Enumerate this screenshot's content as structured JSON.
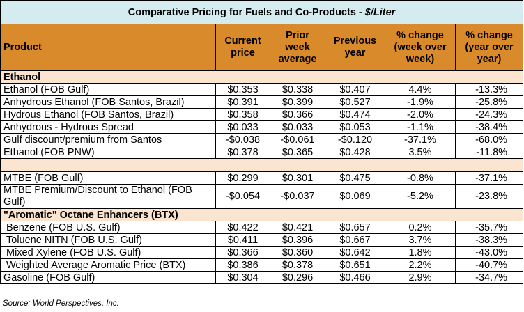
{
  "title": {
    "main": "Comparative Pricing for Fuels and Co-Products - ",
    "unit": "$/Liter"
  },
  "columns": {
    "product": "Product",
    "current": "Current price",
    "prior_week": "Prior week average",
    "previous_year": "Previous year",
    "pct_week": "% change (week over week)",
    "pct_year": "% change (year over year)"
  },
  "sections": {
    "ethanol": "Ethanol",
    "aromatic": "\"Aromatic\" Octane Enhancers (BTX)"
  },
  "rows": [
    {
      "name": "Ethanol (FOB Gulf)",
      "current": "$0.353",
      "prior": "$0.338",
      "prev_year": "$0.407",
      "pct_week": "4.4%",
      "pct_year": "-13.3%"
    },
    {
      "name": "Anhydrous Ethanol (FOB Santos, Brazil)",
      "current": "$0.391",
      "prior": "$0.399",
      "prev_year": "$0.527",
      "pct_week": "-1.9%",
      "pct_year": "-25.8%"
    },
    {
      "name": "Hydrous Ethanol (FOB Santos, Brazil)",
      "current": "$0.358",
      "prior": "$0.366",
      "prev_year": "$0.474",
      "pct_week": "-2.0%",
      "pct_year": "-24.3%"
    },
    {
      "name": "Anhydrous - Hydrous Spread",
      "current": "$0.033",
      "prior": "$0.033",
      "prev_year": "$0.053",
      "pct_week": "-1.1%",
      "pct_year": "-38.4%"
    },
    {
      "name": "Gulf discount/premium from Santos",
      "current": "-$0.038",
      "prior": "-$0.061",
      "prev_year": "-$0.120",
      "pct_week": "-37.1%",
      "pct_year": "-68.0%"
    },
    {
      "name": "Ethanol (FOB PNW)",
      "current": "$0.378",
      "prior": "$0.365",
      "prev_year": "$0.428",
      "pct_week": "3.5%",
      "pct_year": "-11.8%"
    },
    {
      "name": "MTBE (FOB Gulf)",
      "current": "$0.299",
      "prior": "$0.301",
      "prev_year": "$0.475",
      "pct_week": "-0.8%",
      "pct_year": "-37.1%"
    },
    {
      "name": "MTBE Premium/Discount to Ethanol (FOB Gulf)",
      "current": "-$0.054",
      "prior": "-$0.037",
      "prev_year": "$0.069",
      "pct_week": "-5.2%",
      "pct_year": "-23.8%"
    },
    {
      "name": "Benzene (FOB U.S. Gulf)",
      "current": "$0.422",
      "prior": "$0.421",
      "prev_year": "$0.657",
      "pct_week": "0.2%",
      "pct_year": "-35.7%"
    },
    {
      "name": "Toluene NITN (FOB U.S. Gulf)",
      "current": "$0.411",
      "prior": "$0.396",
      "prev_year": "$0.667",
      "pct_week": "3.7%",
      "pct_year": "-38.3%"
    },
    {
      "name": "Mixed Xylene (FOB U.S. Gulf)",
      "current": "$0.366",
      "prior": "$0.360",
      "prev_year": "$0.642",
      "pct_week": "1.8%",
      "pct_year": "-43.0%"
    },
    {
      "name": "Weighted Average Aromatic Price (BTX)",
      "current": "$0.386",
      "prior": "$0.378",
      "prev_year": "$0.651",
      "pct_week": "2.2%",
      "pct_year": "-40.7%"
    },
    {
      "name": "Gasoline (FOB Gulf)",
      "current": "$0.304",
      "prior": "$0.296",
      "prev_year": "$0.466",
      "pct_week": "2.9%",
      "pct_year": "-34.7%"
    }
  ],
  "source": "Source: World Perspectives, Inc.",
  "colors": {
    "title_bg": "#d4ecef",
    "header_bg": "#d98a2a",
    "section_bg": "#fbe5d0"
  }
}
